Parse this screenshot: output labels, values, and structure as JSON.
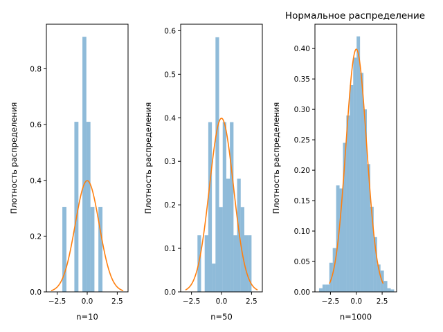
{
  "figure": {
    "ylabel": "Плотность распределения",
    "title": "Нормальное распределение"
  },
  "colors": {
    "histogram": "#1f77b4",
    "curve": "#ff7f0e"
  },
  "chart_data": [
    {
      "type": "bar",
      "xlabel": "n=10",
      "ylabel": "Плотность распределения",
      "xlim": [
        -3.4,
        3.4
      ],
      "ylim": [
        0,
        0.96
      ],
      "xticks": [
        -2.5,
        0.0,
        2.5
      ],
      "xtick_labels": [
        "−2.5",
        "0.0",
        "2.5"
      ],
      "yticks": [
        0.0,
        0.2,
        0.4,
        0.6,
        0.8
      ],
      "ytick_labels": [
        "0.0",
        "0.2",
        "0.4",
        "0.6",
        "0.8"
      ],
      "bins": [
        {
          "x0": -2.07,
          "x1": -1.73,
          "value": 0.305
        },
        {
          "x0": -1.07,
          "x1": -0.73,
          "value": 0.61
        },
        {
          "x0": -0.4,
          "x1": -0.07,
          "value": 0.915
        },
        {
          "x0": -0.07,
          "x1": 0.27,
          "value": 0.61
        },
        {
          "x0": 0.27,
          "x1": 0.6,
          "value": 0.305
        },
        {
          "x0": 0.93,
          "x1": 1.27,
          "value": 0.305
        }
      ],
      "curve": {
        "name": "",
        "mean": 0,
        "std": 1,
        "x_range": [
          -3.0,
          3.0
        ]
      }
    },
    {
      "type": "bar",
      "xlabel": "n=50",
      "ylabel": "Плотность распределения",
      "xlim": [
        -3.4,
        3.4
      ],
      "ylim": [
        0,
        0.615
      ],
      "xticks": [
        -2.5,
        0.0,
        2.5
      ],
      "xtick_labels": [
        "−2.5",
        "0.0",
        "2.5"
      ],
      "yticks": [
        0.0,
        0.1,
        0.2,
        0.3,
        0.4,
        0.5,
        0.6
      ],
      "ytick_labels": [
        "0.0",
        "0.1",
        "0.2",
        "0.3",
        "0.4",
        "0.5",
        "0.6"
      ],
      "bins": [
        {
          "x0": -2.0,
          "x1": -1.7,
          "value": 0.13
        },
        {
          "x0": -1.4,
          "x1": -1.1,
          "value": 0.13
        },
        {
          "x0": -1.1,
          "x1": -0.8,
          "value": 0.39
        },
        {
          "x0": -0.8,
          "x1": -0.5,
          "value": 0.065
        },
        {
          "x0": -0.5,
          "x1": -0.2,
          "value": 0.585
        },
        {
          "x0": -0.2,
          "x1": 0.1,
          "value": 0.195
        },
        {
          "x0": 0.1,
          "x1": 0.4,
          "value": 0.39
        },
        {
          "x0": 0.4,
          "x1": 0.7,
          "value": 0.26
        },
        {
          "x0": 0.7,
          "x1": 1.0,
          "value": 0.39
        },
        {
          "x0": 1.0,
          "x1": 1.3,
          "value": 0.13
        },
        {
          "x0": 1.3,
          "x1": 1.6,
          "value": 0.26
        },
        {
          "x0": 1.6,
          "x1": 1.9,
          "value": 0.195
        },
        {
          "x0": 1.9,
          "x1": 2.2,
          "value": 0.13
        },
        {
          "x0": 2.2,
          "x1": 2.5,
          "value": 0.13
        }
      ],
      "curve": {
        "name": "",
        "mean": 0,
        "std": 1,
        "x_range": [
          -3.0,
          3.0
        ]
      }
    },
    {
      "type": "bar",
      "title": "Нормальное распределение",
      "xlabel": "n=1000",
      "ylabel": "Плотность распределения",
      "xlim": [
        -4.0,
        3.9
      ],
      "ylim": [
        0,
        0.44
      ],
      "xticks": [
        -2.5,
        0.0,
        2.5
      ],
      "xtick_labels": [
        "−2.5",
        "0.0",
        "2.5"
      ],
      "yticks": [
        0.0,
        0.05,
        0.1,
        0.15,
        0.2,
        0.25,
        0.3,
        0.35,
        0.4
      ],
      "ytick_labels": [
        "0.00",
        "0.05",
        "0.10",
        "0.15",
        "0.20",
        "0.25",
        "0.30",
        "0.35",
        "0.40"
      ],
      "bins": [
        {
          "x0": -3.6,
          "x1": -3.27,
          "value": 0.006
        },
        {
          "x0": -3.27,
          "x1": -2.94,
          "value": 0.012
        },
        {
          "x0": -2.94,
          "x1": -2.61,
          "value": 0.012
        },
        {
          "x0": -2.61,
          "x1": -2.28,
          "value": 0.048
        },
        {
          "x0": -2.28,
          "x1": -1.95,
          "value": 0.072
        },
        {
          "x0": -1.95,
          "x1": -1.62,
          "value": 0.175
        },
        {
          "x0": -1.62,
          "x1": -1.29,
          "value": 0.17
        },
        {
          "x0": -1.29,
          "x1": -0.96,
          "value": 0.245
        },
        {
          "x0": -0.96,
          "x1": -0.63,
          "value": 0.29
        },
        {
          "x0": -0.63,
          "x1": -0.3,
          "value": 0.34
        },
        {
          "x0": -0.3,
          "x1": 0.03,
          "value": 0.385
        },
        {
          "x0": 0.03,
          "x1": 0.36,
          "value": 0.42
        },
        {
          "x0": 0.36,
          "x1": 0.69,
          "value": 0.36
        },
        {
          "x0": 0.69,
          "x1": 1.02,
          "value": 0.3
        },
        {
          "x0": 1.02,
          "x1": 1.35,
          "value": 0.21
        },
        {
          "x0": 1.35,
          "x1": 1.68,
          "value": 0.14
        },
        {
          "x0": 1.68,
          "x1": 2.01,
          "value": 0.09
        },
        {
          "x0": 2.01,
          "x1": 2.34,
          "value": 0.045
        },
        {
          "x0": 2.34,
          "x1": 2.67,
          "value": 0.035
        },
        {
          "x0": 2.67,
          "x1": 3.0,
          "value": 0.018
        },
        {
          "x0": 3.0,
          "x1": 3.33,
          "value": 0.006
        },
        {
          "x0": 3.33,
          "x1": 3.66,
          "value": 0.004
        }
      ],
      "curve": {
        "name": "",
        "mean": 0,
        "std": 1,
        "x_range": [
          -2.6,
          2.6
        ]
      }
    }
  ]
}
